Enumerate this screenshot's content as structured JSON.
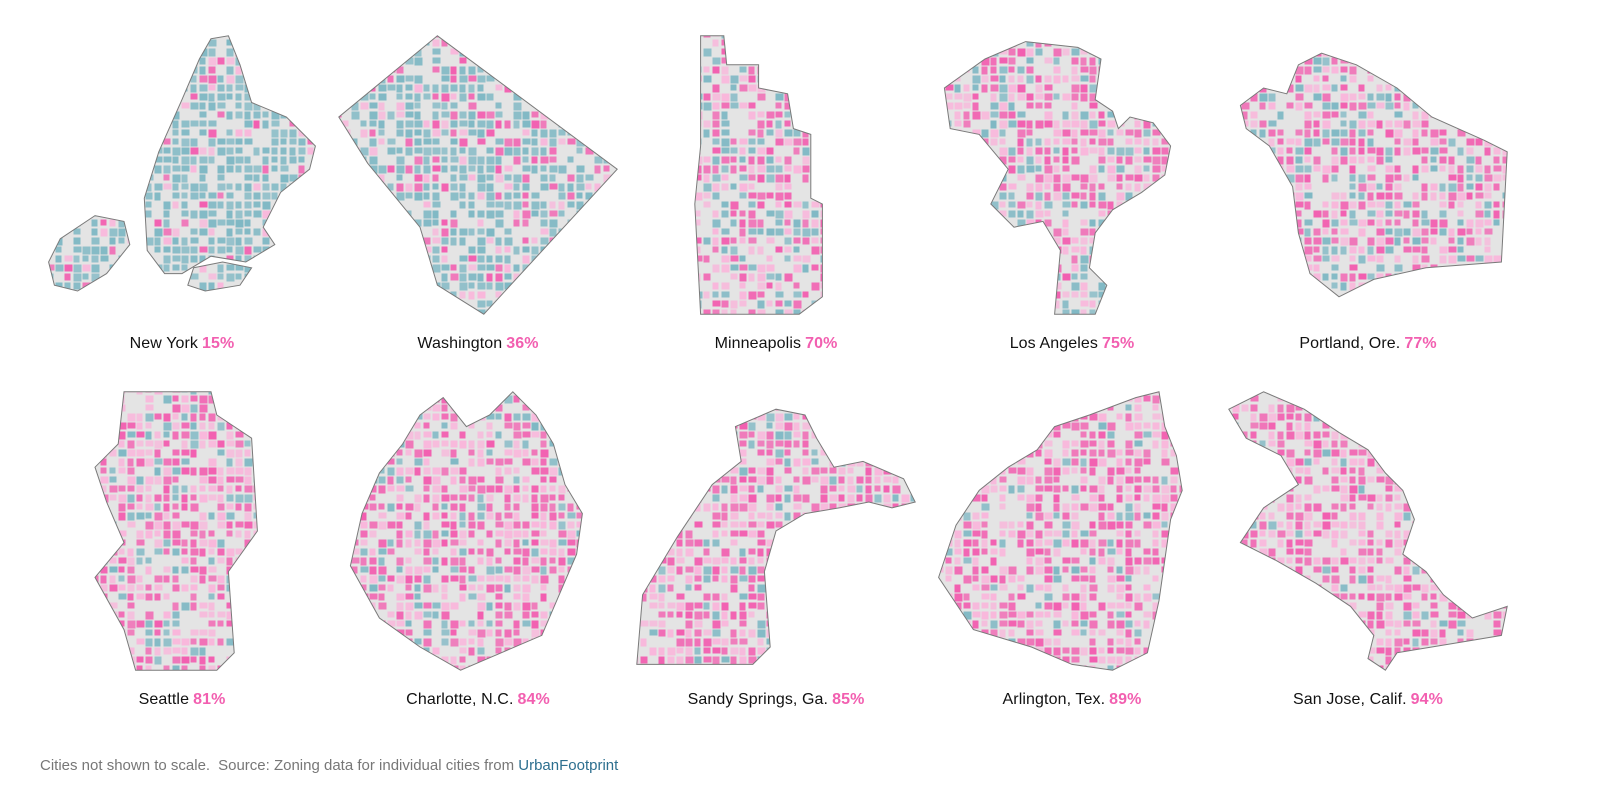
{
  "colors": {
    "single_family": "#f25fb0",
    "single_family_light": "#f9b6db",
    "other_residential": "#7fb8c4",
    "non_residential": "#e4e4e4",
    "outline": "#7a7a7a",
    "label_text": "#111111",
    "footer_text": "#777777",
    "link": "#2d6f8f"
  },
  "cities": [
    {
      "name": "New York",
      "percent": "15%",
      "value": 15
    },
    {
      "name": "Washington",
      "percent": "36%",
      "value": 36
    },
    {
      "name": "Minneapolis",
      "percent": "70%",
      "value": 70
    },
    {
      "name": "Los Angeles",
      "percent": "75%",
      "value": 75
    },
    {
      "name": "Portland, Ore.",
      "percent": "77%",
      "value": 77
    },
    {
      "name": "Seattle",
      "percent": "81%",
      "value": 81
    },
    {
      "name": "Charlotte, N.C.",
      "percent": "84%",
      "value": 84
    },
    {
      "name": "Sandy Springs, Ga.",
      "percent": "85%",
      "value": 85
    },
    {
      "name": "Arlington, Tex.",
      "percent": "89%",
      "value": 89
    },
    {
      "name": "San Jose, Calif.",
      "percent": "94%",
      "value": 94
    }
  ],
  "footer": {
    "note": "Cities not shown to scale.",
    "source_prefix": "Source: Zoning data for individual cities from",
    "source_link": "UrbanFootprint"
  }
}
